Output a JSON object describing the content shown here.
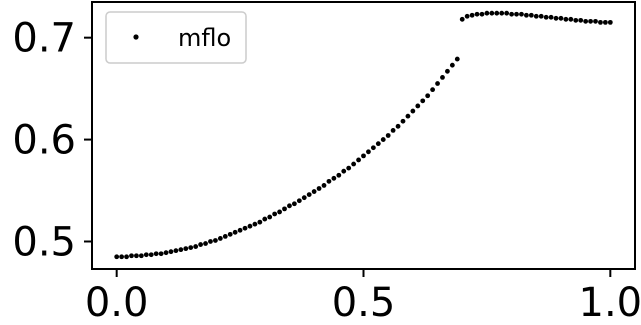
{
  "chart_data": {
    "type": "scatter",
    "title": "",
    "xlabel": "",
    "ylabel": "",
    "xlim": [
      -0.05,
      1.05
    ],
    "ylim": [
      0.473,
      0.735
    ],
    "xticks": [
      0.0,
      0.5,
      1.0
    ],
    "xtick_labels": [
      "0.0",
      "0.5",
      "1.0"
    ],
    "yticks": [
      0.5,
      0.6,
      0.7
    ],
    "ytick_labels": [
      "0.5",
      "0.6",
      "0.7"
    ],
    "grid": false,
    "legend": {
      "position": "top-left"
    },
    "series": [
      {
        "name": "mflo",
        "marker": "dot",
        "color": "#000000",
        "x": [
          0.0,
          0.01,
          0.02,
          0.03,
          0.04,
          0.05,
          0.06,
          0.07,
          0.08,
          0.09,
          0.1,
          0.11,
          0.12,
          0.13,
          0.14,
          0.15,
          0.16,
          0.17,
          0.18,
          0.19,
          0.2,
          0.21,
          0.22,
          0.23,
          0.24,
          0.25,
          0.26,
          0.27,
          0.28,
          0.29,
          0.3,
          0.31,
          0.32,
          0.33,
          0.34,
          0.35,
          0.36,
          0.37,
          0.38,
          0.39,
          0.4,
          0.41,
          0.42,
          0.43,
          0.44,
          0.45,
          0.46,
          0.47,
          0.48,
          0.49,
          0.5,
          0.51,
          0.52,
          0.53,
          0.54,
          0.55,
          0.56,
          0.57,
          0.58,
          0.59,
          0.6,
          0.61,
          0.62,
          0.63,
          0.64,
          0.65,
          0.66,
          0.67,
          0.68,
          0.69,
          0.7,
          0.71,
          0.72,
          0.73,
          0.74,
          0.75,
          0.76,
          0.77,
          0.78,
          0.79,
          0.8,
          0.81,
          0.82,
          0.83,
          0.84,
          0.85,
          0.86,
          0.87,
          0.88,
          0.89,
          0.9,
          0.91,
          0.92,
          0.93,
          0.94,
          0.95,
          0.96,
          0.97,
          0.98,
          0.99,
          1.0
        ],
        "y": [
          0.485,
          0.485,
          0.485,
          0.486,
          0.486,
          0.486,
          0.487,
          0.487,
          0.488,
          0.488,
          0.489,
          0.49,
          0.491,
          0.492,
          0.493,
          0.494,
          0.495,
          0.497,
          0.498,
          0.5,
          0.501,
          0.503,
          0.505,
          0.507,
          0.509,
          0.511,
          0.513,
          0.515,
          0.517,
          0.519,
          0.522,
          0.524,
          0.527,
          0.529,
          0.532,
          0.535,
          0.537,
          0.54,
          0.543,
          0.546,
          0.549,
          0.552,
          0.555,
          0.559,
          0.562,
          0.565,
          0.569,
          0.572,
          0.576,
          0.58,
          0.584,
          0.588,
          0.592,
          0.596,
          0.6,
          0.604,
          0.609,
          0.613,
          0.618,
          0.623,
          0.628,
          0.633,
          0.638,
          0.643,
          0.649,
          0.655,
          0.661,
          0.667,
          0.673,
          0.679,
          0.718,
          0.721,
          0.722,
          0.723,
          0.723,
          0.724,
          0.724,
          0.724,
          0.724,
          0.724,
          0.723,
          0.723,
          0.723,
          0.722,
          0.722,
          0.721,
          0.721,
          0.72,
          0.72,
          0.719,
          0.719,
          0.718,
          0.718,
          0.717,
          0.717,
          0.716,
          0.716,
          0.716,
          0.715,
          0.715,
          0.715
        ]
      }
    ]
  }
}
